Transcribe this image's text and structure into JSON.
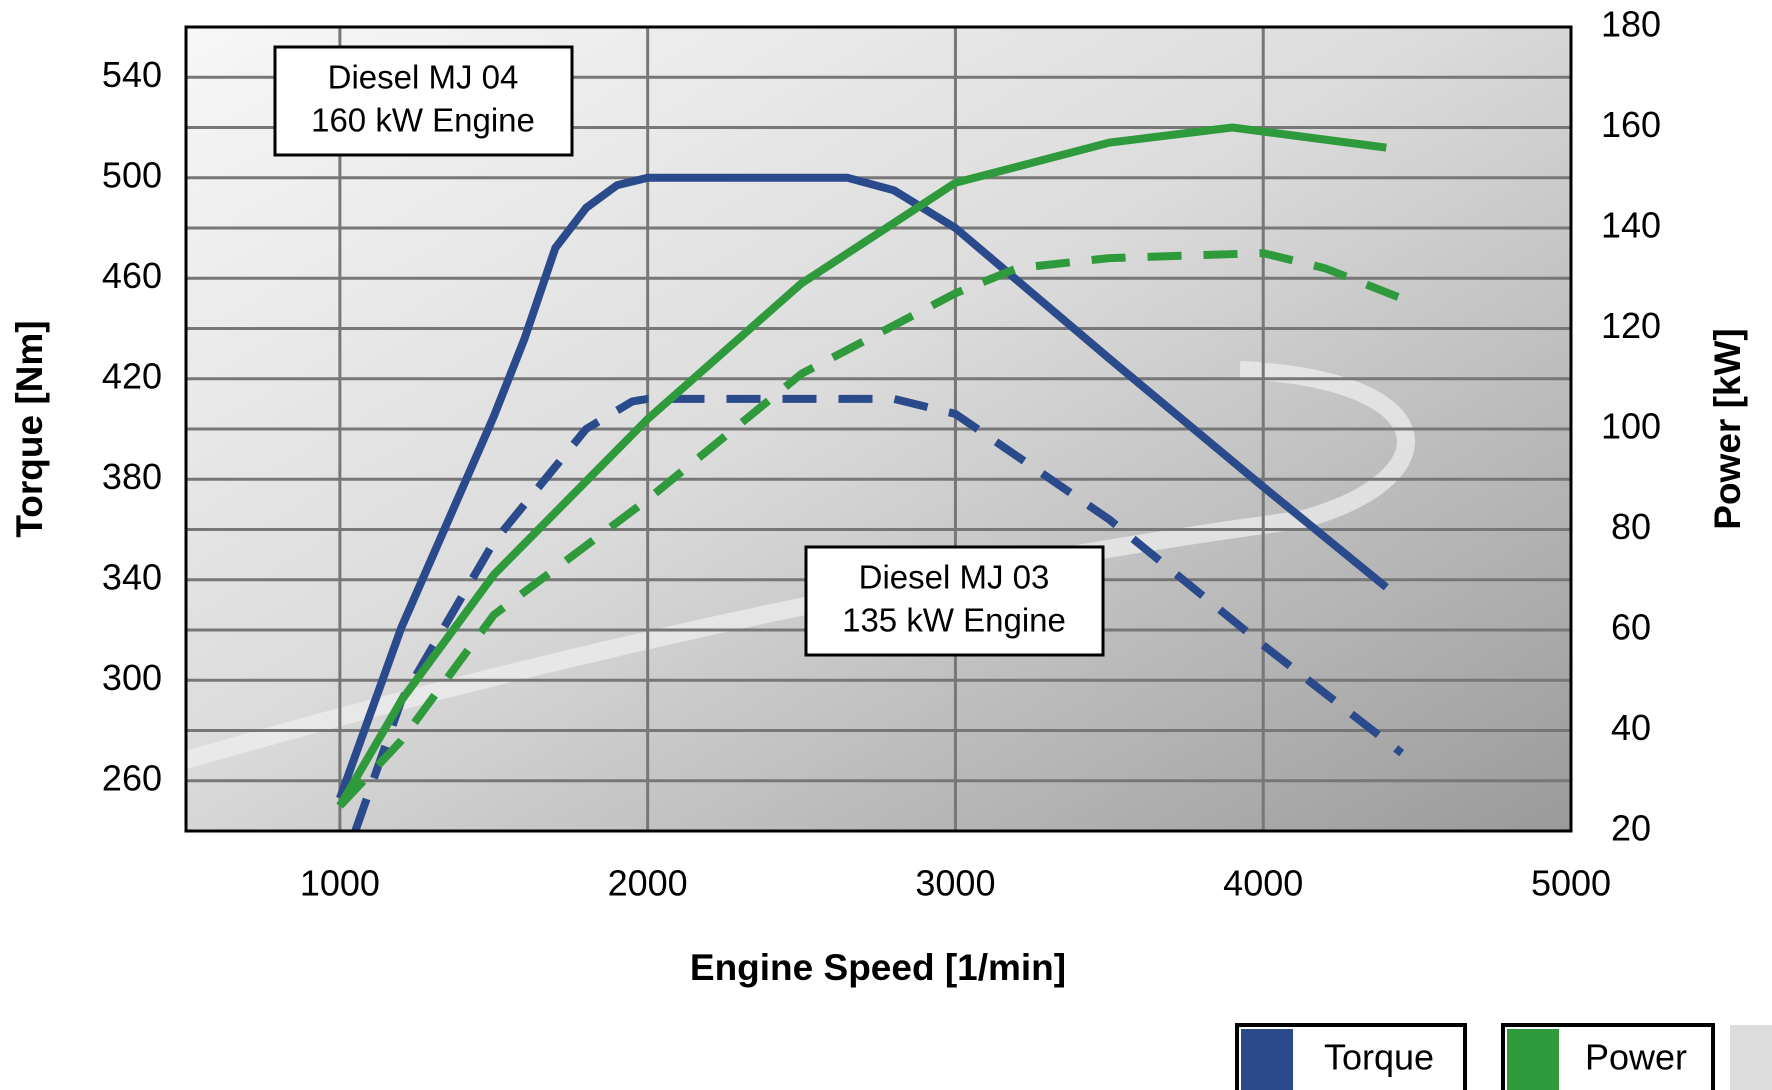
{
  "chart_data": {
    "type": "line",
    "x_label": "Engine Speed [1/min]",
    "y_label": "Torque [Nm]",
    "y2_label": "Power [kW]",
    "xlim": [
      500,
      5000
    ],
    "xticks": [
      1000,
      2000,
      3000,
      4000,
      5000
    ],
    "ylim": [
      240,
      560
    ],
    "yticks": [
      260,
      300,
      340,
      380,
      420,
      460,
      500,
      540
    ],
    "y2lim": [
      20,
      180
    ],
    "y2ticks": [
      20,
      40,
      60,
      80,
      100,
      120,
      140,
      160,
      180
    ],
    "grid": true,
    "annotations": [
      {
        "lines": [
          "Diesel MJ 04",
          "160 kW Engine"
        ]
      },
      {
        "lines": [
          "Diesel MJ 03",
          "135 kW Engine"
        ]
      }
    ],
    "legend": [
      {
        "label": "Torque",
        "color": "#2a4a8c"
      },
      {
        "label": "Power",
        "color": "#2e9a3c"
      }
    ],
    "series": [
      {
        "color": "#2a4a8c",
        "dashed": false,
        "axis": "y",
        "x": [
          1000,
          1200,
          1400,
          1500,
          1600,
          1700,
          1800,
          1900,
          2000,
          2650,
          2800,
          3000,
          3500,
          4000,
          4400
        ],
        "values": [
          253,
          321,
          377,
          405,
          436,
          472,
          488,
          497,
          500,
          500,
          495,
          480,
          428,
          377,
          337
        ]
      },
      {
        "color": "#2a4a8c",
        "dashed": true,
        "axis": "y",
        "x": [
          1050,
          1200,
          1500,
          1800,
          1950,
          2000,
          2800,
          3000,
          3500,
          4000,
          4450
        ],
        "values": [
          240,
          292,
          355,
          400,
          411,
          412,
          412,
          406,
          364,
          314,
          271
        ]
      },
      {
        "color": "#2e9a3c",
        "dashed": false,
        "axis": "y2",
        "x": [
          1000,
          1200,
          1500,
          2000,
          2500,
          3000,
          3500,
          3900,
          4400
        ],
        "values": [
          25,
          46,
          71,
          102,
          129,
          149,
          157,
          160,
          156
        ]
      },
      {
        "color": "#2e9a3c",
        "dashed": true,
        "axis": "y2",
        "x": [
          1000,
          1200,
          1500,
          2000,
          2500,
          3000,
          3200,
          3500,
          4000,
          4200,
          4450
        ],
        "values": [
          25,
          38,
          63,
          86,
          111,
          127,
          132,
          134,
          135,
          132,
          126
        ]
      }
    ]
  }
}
